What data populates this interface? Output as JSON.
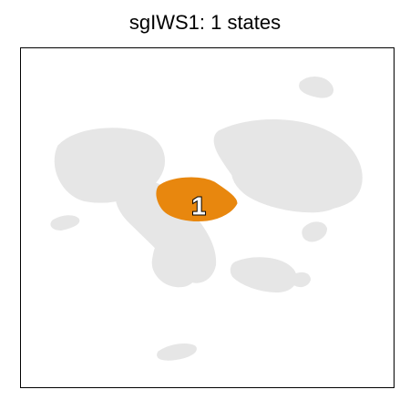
{
  "title": "sgIWS1: 1 states",
  "colors": {
    "background_cells": "#e6e6e6",
    "highlight": "#e8870e",
    "label_fill": "#ffffff",
    "label_stroke": "#000000",
    "frame": "#000000"
  },
  "chart_data": {
    "type": "scatter",
    "title": "sgIWS1: 1 states",
    "xlabel": "",
    "ylabel": "",
    "grid": false,
    "legend": "none",
    "axes_ticks": false,
    "background_series": {
      "color": "#e6e6e6",
      "description": "all cells (UMAP embedding)"
    },
    "states": [
      {
        "label": "1",
        "color": "#e8870e"
      }
    ]
  }
}
